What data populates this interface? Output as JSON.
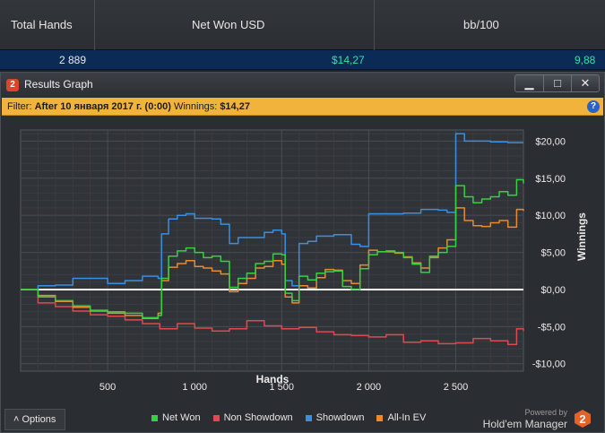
{
  "summary": {
    "headers": [
      "Total Hands",
      "Net Won USD",
      "bb/100"
    ],
    "values": [
      "2 889",
      "$14,27",
      "9,88"
    ]
  },
  "window": {
    "icon_label": "2",
    "title": "Results Graph",
    "buttons": {
      "minimize": "▁",
      "maximize": "□",
      "close": "✕"
    }
  },
  "filter": {
    "prefix": "Filter: ",
    "text": "After 10 января 2017 г. (0:00)",
    "winnings_label": " Winnings: ",
    "winnings_value": "$14,27",
    "help_icon": "?"
  },
  "options_button": "˄  Options",
  "brand": {
    "powered_by": "Powered by",
    "name": "Hold'em Manager",
    "logo": "2"
  },
  "colors": {
    "net_won": "#35d23f",
    "non_showdown": "#e0494e",
    "showdown": "#3a8fe0",
    "all_in_ev": "#e98a2e",
    "zero_line": "#ffffff"
  },
  "chart_data": {
    "type": "line",
    "xlabel": "Hands",
    "ylabel": "Winnings",
    "xlim": [
      0,
      2889
    ],
    "ylim": [
      -11,
      21.5
    ],
    "x_ticks": [
      {
        "value": 500,
        "label": "500"
      },
      {
        "value": 1000,
        "label": "1 000"
      },
      {
        "value": 1500,
        "label": "1 500"
      },
      {
        "value": 2000,
        "label": "2 000"
      },
      {
        "value": 2500,
        "label": "2 500"
      }
    ],
    "y_ticks": [
      {
        "value": 20,
        "label": "$20,00"
      },
      {
        "value": 15,
        "label": "$15,00"
      },
      {
        "value": 10,
        "label": "$10,00"
      },
      {
        "value": 5,
        "label": "$5,00"
      },
      {
        "value": 0,
        "label": "$0,00"
      },
      {
        "value": -5,
        "label": "-$5,00"
      },
      {
        "value": -10,
        "label": "-$10,00"
      }
    ],
    "grid": true,
    "legend_position": "bottom",
    "series": [
      {
        "name": "Net Won",
        "color": "#35d23f",
        "x": [
          0,
          100,
          200,
          300,
          400,
          500,
          600,
          700,
          790,
          810,
          850,
          900,
          950,
          1000,
          1050,
          1100,
          1150,
          1200,
          1250,
          1300,
          1350,
          1400,
          1450,
          1500,
          1520,
          1560,
          1600,
          1650,
          1700,
          1750,
          1800,
          1850,
          1900,
          1950,
          2000,
          2050,
          2100,
          2150,
          2200,
          2250,
          2300,
          2350,
          2400,
          2450,
          2500,
          2550,
          2600,
          2650,
          2700,
          2750,
          2800,
          2850,
          2889
        ],
        "values": [
          0,
          -1,
          -1.5,
          -2.2,
          -2.8,
          -3,
          -3.2,
          -3.8,
          -3.5,
          1.5,
          4.5,
          5.2,
          5.6,
          5,
          4.3,
          4.5,
          3.8,
          0.3,
          1.5,
          2.2,
          3.5,
          3.8,
          4.8,
          4.7,
          -0.5,
          -1.5,
          1.8,
          1.3,
          2.2,
          2.4,
          2.5,
          0.4,
          0,
          2.8,
          4.7,
          5.1,
          5.2,
          5,
          4.3,
          3.4,
          2.3,
          4.5,
          5,
          5.8,
          14,
          12.5,
          11.7,
          12.2,
          12.5,
          13.2,
          12.7,
          14.8,
          14.3
        ]
      },
      {
        "name": "Non Showdown",
        "color": "#e0494e",
        "x": [
          0,
          100,
          200,
          300,
          400,
          500,
          600,
          700,
          800,
          900,
          1000,
          1100,
          1200,
          1300,
          1400,
          1500,
          1600,
          1700,
          1800,
          1900,
          2000,
          2100,
          2200,
          2300,
          2400,
          2500,
          2600,
          2700,
          2800,
          2850,
          2889
        ],
        "values": [
          0,
          -1.8,
          -2.3,
          -2.9,
          -3.4,
          -3.6,
          -4.1,
          -4.6,
          -5.3,
          -4.6,
          -5.2,
          -5.6,
          -5.3,
          -4.2,
          -4.9,
          -5.3,
          -5.1,
          -5.7,
          -6.1,
          -6.2,
          -6.4,
          -6.1,
          -7.1,
          -6.9,
          -7.3,
          -7.2,
          -6.6,
          -6.9,
          -7.4,
          -5.3,
          -5.6
        ]
      },
      {
        "name": "Showdown",
        "color": "#3a8fe0",
        "x": [
          0,
          100,
          200,
          300,
          400,
          500,
          600,
          700,
          790,
          810,
          850,
          900,
          950,
          1000,
          1050,
          1100,
          1150,
          1200,
          1250,
          1300,
          1400,
          1450,
          1500,
          1520,
          1560,
          1600,
          1650,
          1700,
          1800,
          1900,
          1950,
          2000,
          2100,
          2200,
          2300,
          2400,
          2450,
          2490,
          2500,
          2550,
          2600,
          2700,
          2800,
          2889
        ],
        "values": [
          0,
          0.5,
          0.6,
          1.5,
          1.5,
          0.8,
          1.2,
          1.8,
          1.5,
          7.5,
          9.5,
          10,
          10.2,
          9.6,
          9.6,
          9.5,
          8.8,
          6.2,
          7,
          7,
          7.7,
          8,
          7.5,
          1.2,
          0.5,
          6.2,
          6.5,
          7.2,
          7.4,
          6.1,
          5.8,
          10.2,
          10.2,
          10.3,
          10.8,
          10.7,
          10.4,
          10.4,
          21,
          20,
          20,
          19.9,
          19.8,
          19.8
        ]
      },
      {
        "name": "All-In EV",
        "color": "#e98a2e",
        "x": [
          0,
          100,
          200,
          300,
          400,
          500,
          600,
          700,
          790,
          810,
          850,
          900,
          950,
          1000,
          1050,
          1100,
          1150,
          1200,
          1250,
          1300,
          1350,
          1400,
          1450,
          1500,
          1520,
          1560,
          1600,
          1650,
          1700,
          1750,
          1800,
          1850,
          1900,
          1950,
          2000,
          2050,
          2100,
          2150,
          2200,
          2250,
          2300,
          2350,
          2400,
          2450,
          2500,
          2550,
          2600,
          2650,
          2700,
          2750,
          2800,
          2850,
          2889
        ],
        "values": [
          0,
          -0.8,
          -1.6,
          -2.4,
          -2.9,
          -3.2,
          -3.5,
          -3.9,
          -3.2,
          1.2,
          3,
          3.5,
          3.9,
          3.1,
          2.9,
          2.5,
          2.1,
          -0.3,
          0.8,
          1.5,
          2.9,
          3.1,
          3.9,
          3.4,
          -1,
          -1.8,
          0.5,
          0.2,
          1.6,
          2.7,
          2.6,
          1.2,
          0.8,
          3.3,
          5.3,
          5.1,
          5.1,
          4.9,
          4.4,
          3.6,
          2.9,
          4.3,
          5.6,
          6.7,
          11,
          9.3,
          8.6,
          8.5,
          9,
          9.3,
          8.4,
          10.8,
          10.6
        ]
      }
    ]
  }
}
